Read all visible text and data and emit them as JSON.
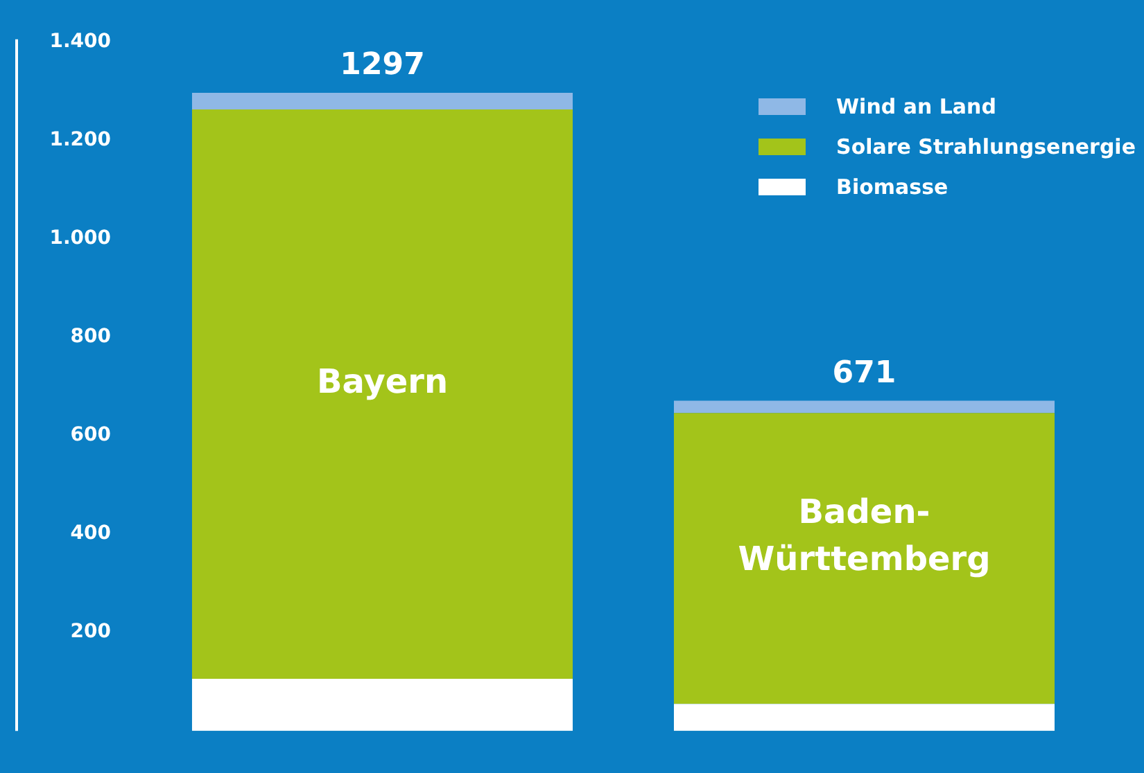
{
  "chart_data": {
    "type": "bar",
    "stacked": true,
    "categories": [
      "Bayern",
      "Baden-Württemberg"
    ],
    "series": [
      {
        "name": "Biomasse",
        "color": "#ffffff",
        "values": [
          106,
          55
        ]
      },
      {
        "name": "Solare Strahlungsenergie",
        "color": "#a3c41a",
        "values": [
          1157,
          591
        ]
      },
      {
        "name": "Wind an Land",
        "color": "#8fb8e6",
        "values": [
          34,
          25
        ]
      }
    ],
    "ylim": [
      0,
      1400
    ],
    "yticks": [
      {
        "value": 200,
        "label": "200"
      },
      {
        "value": 400,
        "label": "400"
      },
      {
        "value": 600,
        "label": "600"
      },
      {
        "value": 800,
        "label": "800"
      },
      {
        "value": 1000,
        "label": "1.000"
      },
      {
        "value": 1200,
        "label": "1.200"
      },
      {
        "value": 1400,
        "label": "1.400"
      }
    ],
    "totals": [
      "1297",
      "671"
    ],
    "grid": false,
    "legend": "top right"
  }
}
